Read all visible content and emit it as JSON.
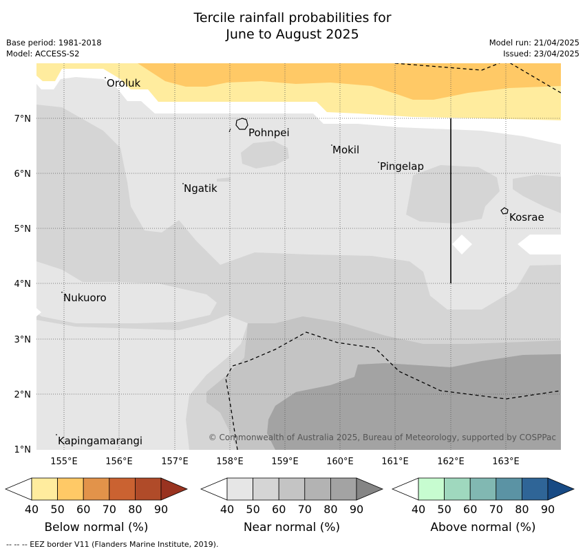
{
  "title": {
    "line1": "Tercile rainfall probabilities for",
    "line2": "June to August 2025"
  },
  "meta": {
    "base_period": "Base period: 1981-2018",
    "model": "Model: ACCESS-S2",
    "model_run": "Model run: 21/04/2025",
    "issued": "Issued: 23/04/2025"
  },
  "map": {
    "longitude_ticks": [
      "155°E",
      "156°E",
      "157°E",
      "158°E",
      "159°E",
      "160°E",
      "161°E",
      "162°E",
      "163°E"
    ],
    "latitude_ticks": [
      "7°N",
      "6°N",
      "5°N",
      "4°N",
      "3°N",
      "2°N",
      "1°N"
    ],
    "places": [
      "Oroluk",
      "Pohnpei",
      "Mokil",
      "Pingelap",
      "Ngatik",
      "Kosrae",
      "Nukuoro",
      "Kapingamarangi"
    ],
    "copyright": "© Commonwealth of Australia 2025, Bureau of Meteorology, supported by COSPPac",
    "colors": {
      "land_outline": "#000000",
      "near_40": "#e6e6e6",
      "near_50": "#d5d5d5",
      "near_60": "#c4c4c4",
      "near_70": "#b3b3b3",
      "near_80": "#a3a3a3",
      "below_40": "#ffec9e",
      "below_50": "#ffc966"
    }
  },
  "legends": [
    {
      "title": "Below normal (%)",
      "ticks": [
        "40",
        "50",
        "60",
        "70",
        "80",
        "90"
      ],
      "colors": [
        "#ffffff",
        "#ffec9e",
        "#ffc966",
        "#e2934a",
        "#ca6231",
        "#b04b29",
        "#993320"
      ]
    },
    {
      "title": "Near normal (%)",
      "ticks": [
        "40",
        "50",
        "60",
        "70",
        "80",
        "90"
      ],
      "colors": [
        "#ffffff",
        "#e6e6e6",
        "#d5d5d5",
        "#c4c4c4",
        "#b3b3b3",
        "#a3a3a3",
        "#858585"
      ]
    },
    {
      "title": "Above normal (%)",
      "ticks": [
        "40",
        "50",
        "60",
        "70",
        "80",
        "90"
      ],
      "colors": [
        "#ffffff",
        "#c7fcd0",
        "#9fd8be",
        "#81b8b2",
        "#5b93a4",
        "#2f6597",
        "#174a84"
      ]
    }
  ],
  "footnote": "--  --  -- EEZ border V11 (Flanders Marine Institute, 2019)."
}
